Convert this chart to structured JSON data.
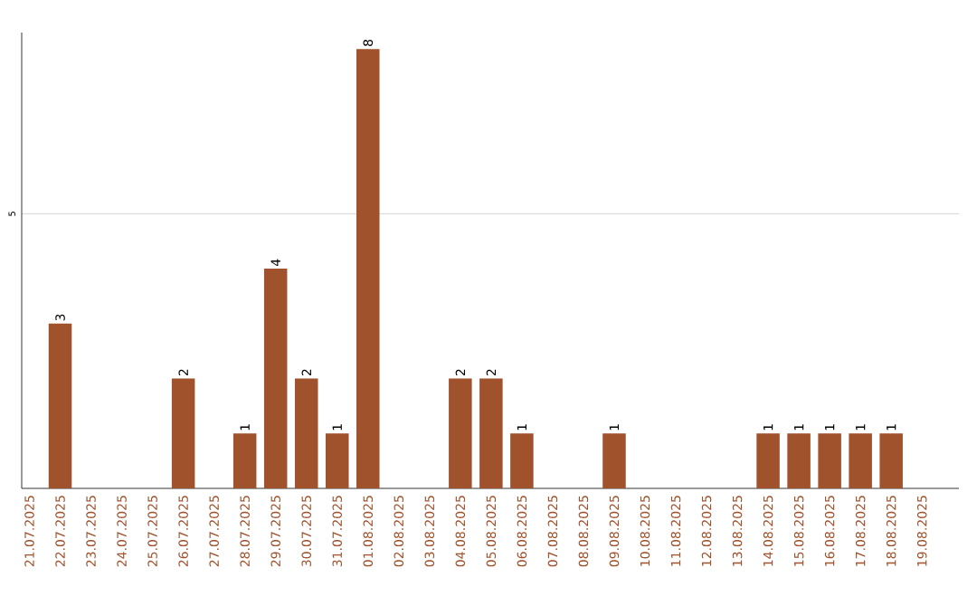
{
  "chart_data": {
    "type": "bar",
    "categories": [
      "21.07.2025",
      "22.07.2025",
      "23.07.2025",
      "24.07.2025",
      "25.07.2025",
      "26.07.2025",
      "27.07.2025",
      "28.07.2025",
      "29.07.2025",
      "30.07.2025",
      "31.07.2025",
      "01.08.2025",
      "02.08.2025",
      "03.08.2025",
      "04.08.2025",
      "05.08.2025",
      "06.08.2025",
      "07.08.2025",
      "08.08.2025",
      "09.08.2025",
      "10.08.2025",
      "11.08.2025",
      "12.08.2025",
      "13.08.2025",
      "14.08.2025",
      "15.08.2025",
      "16.08.2025",
      "17.08.2025",
      "18.08.2025",
      "19.08.2025"
    ],
    "values": [
      0,
      3,
      0,
      0,
      0,
      2,
      0,
      1,
      4,
      2,
      1,
      8,
      0,
      0,
      2,
      2,
      1,
      0,
      0,
      1,
      0,
      0,
      0,
      0,
      1,
      1,
      1,
      1,
      1,
      0
    ],
    "value_labels": [
      null,
      "3",
      null,
      null,
      null,
      "2",
      null,
      "1",
      "4",
      "2",
      "1",
      "8",
      null,
      null,
      "2",
      "2",
      "1",
      null,
      null,
      "1",
      null,
      null,
      null,
      null,
      "1",
      "1",
      "1",
      "1",
      "1",
      null
    ],
    "color": "#a0522d",
    "ylim": [
      0,
      8.3
    ],
    "yticks": [
      5
    ],
    "grid": "y"
  }
}
